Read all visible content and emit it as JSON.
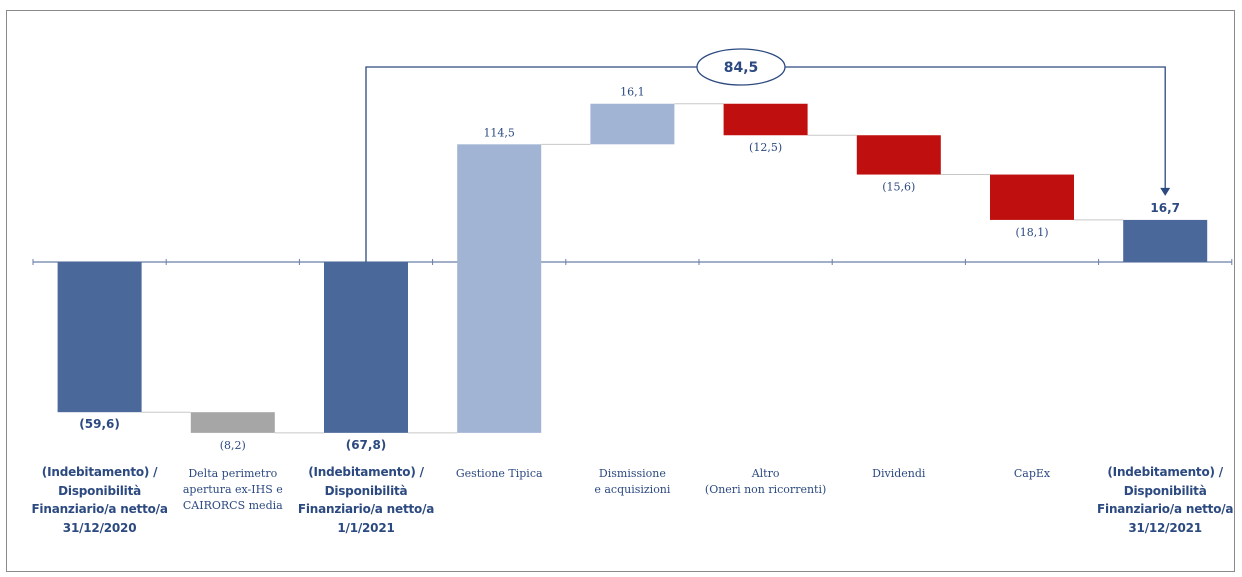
{
  "chart_data": {
    "type": "waterfall",
    "zero_line": true,
    "bridge": {
      "label": "84,5",
      "from_category_index": 2,
      "to_category_index": 8
    },
    "categories": [
      "(Indebitamento) /\nDisponibilità\nFinanziario/a netto/a\n31/12/2020",
      "Delta perimetro\napertura ex-IHS e\nCAIRORCS media",
      "(Indebitamento) /\nDisponibilità\nFinanziario/a netto/a\n1/1/2021",
      "Gestione Tipica",
      "Dismissione\ne acquisizioni",
      "Altro\n(Oneri non ricorrenti)",
      "Dividendi",
      "CapEx",
      "(Indebitamento) /\nDisponibilità\nFinanziario/a netto/a\n31/12/2021"
    ],
    "bars": [
      {
        "kind": "total",
        "start": 0,
        "end": -59.6,
        "value": -59.6,
        "label": "(59,6)",
        "color": "#4a6899",
        "label_pos": "below",
        "label_bold": true,
        "cat_bold": true
      },
      {
        "kind": "delta",
        "start": -59.6,
        "end": -67.8,
        "value": -8.2,
        "label": "(8,2)",
        "color": "#a6a6a6",
        "label_pos": "below",
        "label_bold": false,
        "cat_bold": false
      },
      {
        "kind": "total",
        "start": 0,
        "end": -67.8,
        "value": -67.8,
        "label": "(67,8)",
        "color": "#4a6899",
        "label_pos": "below",
        "label_bold": true,
        "cat_bold": true
      },
      {
        "kind": "increase",
        "start": -67.8,
        "end": 46.7,
        "value": 114.5,
        "label": "114,5",
        "color": "#a2b4d4",
        "label_pos": "above",
        "label_bold": false,
        "cat_bold": false
      },
      {
        "kind": "increase",
        "start": 46.7,
        "end": 62.8,
        "value": 16.1,
        "label": "16,1",
        "color": "#a2b4d4",
        "label_pos": "above",
        "label_bold": false,
        "cat_bold": false
      },
      {
        "kind": "decrease",
        "start": 62.8,
        "end": 50.3,
        "value": -12.5,
        "label": "(12,5)",
        "color": "#c00f0f",
        "label_pos": "below",
        "label_bold": false,
        "cat_bold": false
      },
      {
        "kind": "decrease",
        "start": 50.3,
        "end": 34.7,
        "value": -15.6,
        "label": "(15,6)",
        "color": "#c00f0f",
        "label_pos": "below",
        "label_bold": false,
        "cat_bold": false
      },
      {
        "kind": "decrease",
        "start": 34.7,
        "end": 16.7,
        "value": -18.1,
        "label": "(18,1)",
        "color": "#c00f0f",
        "label_pos": "below",
        "label_bold": false,
        "cat_bold": false
      },
      {
        "kind": "total",
        "start": 0,
        "end": 16.7,
        "value": 16.7,
        "label": "16,7",
        "color": "#4a6899",
        "label_pos": "above",
        "label_bold": true,
        "cat_bold": true
      }
    ],
    "colors": {
      "total": "#4a6899",
      "increase": "#a2b4d4",
      "decrease": "#c00f0f",
      "perimeter": "#a6a6a6",
      "label_text": "#2c4a80",
      "bridge_line": "#2c4a80"
    }
  }
}
